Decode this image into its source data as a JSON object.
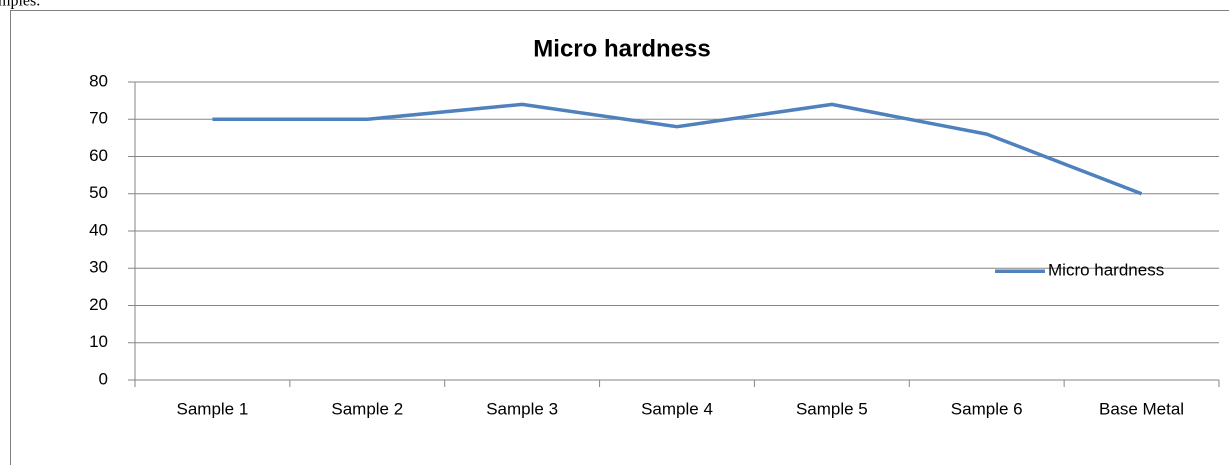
{
  "text_above": "mples.",
  "chart_data": {
    "type": "line",
    "title": "Micro hardness",
    "categories": [
      "Sample 1",
      "Sample 2",
      "Sample 3",
      "Sample 4",
      "Sample 5",
      "Sample 6",
      "Base Metal"
    ],
    "series": [
      {
        "name": "Micro hardness",
        "color": "#4f81bd",
        "values": [
          70,
          70,
          74,
          68,
          74,
          66,
          50
        ]
      }
    ],
    "ylim": [
      0,
      80
    ],
    "yticks": [
      0,
      10,
      20,
      30,
      40,
      50,
      60,
      70,
      80
    ],
    "grid": true,
    "legend": "right"
  }
}
